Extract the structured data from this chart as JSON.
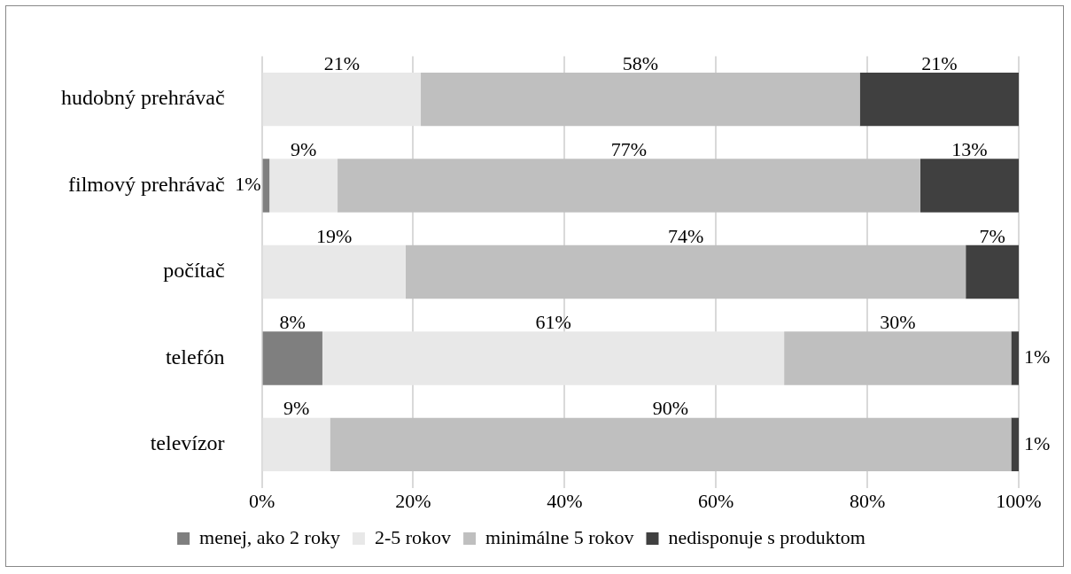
{
  "chart_data": {
    "type": "bar",
    "orientation": "horizontal",
    "stacked": true,
    "categories": [
      "hudobný prehrávač",
      "filmový prehrávač",
      "počítač",
      "telefón",
      "televízor"
    ],
    "series": [
      {
        "name": "menej, ako 2 roky",
        "color": "#7f7f7f",
        "values": [
          0,
          1,
          0,
          8,
          0
        ],
        "value_labels": [
          null,
          "1%",
          null,
          "8%",
          null
        ]
      },
      {
        "name": "2-5 rokov",
        "color": "#e8e8e8",
        "values": [
          21,
          9,
          19,
          61,
          9
        ],
        "value_labels": [
          "21%",
          "9%",
          "19%",
          "61%",
          "9%"
        ]
      },
      {
        "name": "minimálne 5 rokov",
        "color": "#bfbfbf",
        "values": [
          58,
          77,
          74,
          30,
          90
        ],
        "value_labels": [
          "58%",
          "77%",
          "74%",
          "30%",
          "90%"
        ]
      },
      {
        "name": "nedisponuje s produktom",
        "color": "#404040",
        "values": [
          21,
          13,
          7,
          1,
          1
        ],
        "value_labels": [
          "21%",
          "13%",
          "7%",
          "1%",
          "1%"
        ]
      }
    ],
    "xlim": [
      0,
      100
    ],
    "xticks": [
      {
        "value": 0,
        "label": "0%"
      },
      {
        "value": 20,
        "label": "20%"
      },
      {
        "value": 40,
        "label": "40%"
      },
      {
        "value": 60,
        "label": "60%"
      },
      {
        "value": 80,
        "label": "80%"
      },
      {
        "value": 100,
        "label": "100%"
      }
    ],
    "grid": "x",
    "legend": "bottom"
  }
}
